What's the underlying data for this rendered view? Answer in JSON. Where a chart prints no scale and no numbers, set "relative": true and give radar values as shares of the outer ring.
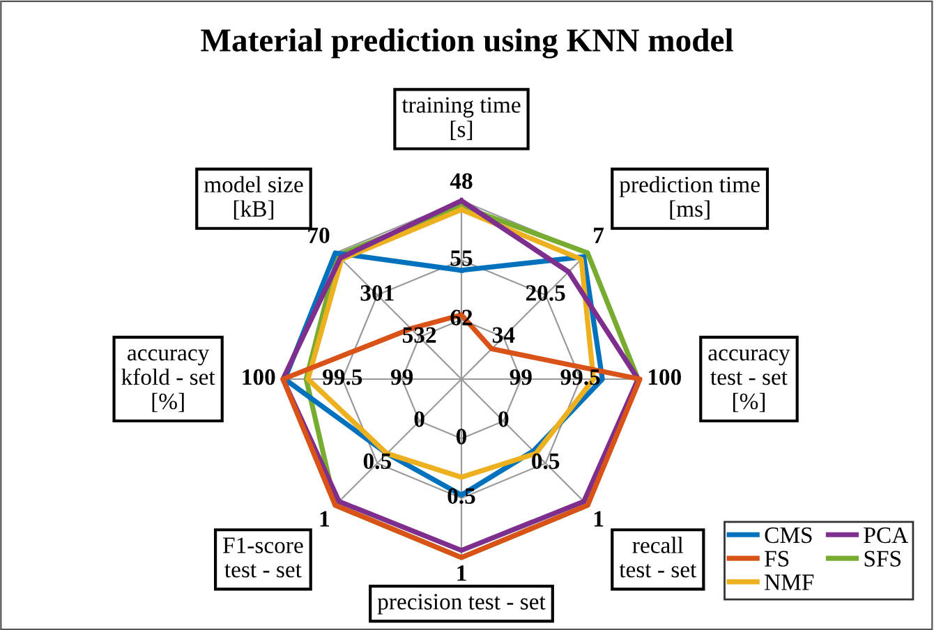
{
  "chart_data": {
    "type": "radar",
    "title": "Material prediction using KNN model",
    "relative": true,
    "grid": true,
    "legend": "bottom right",
    "line_style": "solid",
    "marker": "none",
    "categories": [
      "training time\n[s]",
      "prediction time\n[ms]",
      "accuracy\ntest - set\n[%]",
      "recall\ntest - set",
      "precision test - set",
      "F1-score\ntest - set",
      "accuracy\nkfold - set\n[%]",
      "model size\n[kB]"
    ],
    "series": [
      {
        "name": "CMS",
        "color": "#0072bd",
        "values": [
          0.61,
          0.97,
          0.79,
          0.57,
          0.65,
          0.59,
          0.99,
          1.0
        ]
      },
      {
        "name": "FS",
        "color": "#d95319",
        "values": [
          0.36,
          0.24,
          1.0,
          1.0,
          1.0,
          1.0,
          1.0,
          0.4
        ]
      },
      {
        "name": "NMF",
        "color": "#edb120",
        "values": [
          0.95,
          0.95,
          0.74,
          0.59,
          0.55,
          0.59,
          0.86,
          0.95
        ]
      },
      {
        "name": "PCA",
        "color": "#7e2f8e",
        "values": [
          1.0,
          0.85,
          0.99,
          0.97,
          0.96,
          0.97,
          1.0,
          0.96
        ]
      },
      {
        "name": "SFS",
        "color": "#77ac30",
        "values": [
          0.97,
          1.0,
          0.99,
          1.0,
          1.0,
          1.0,
          0.87,
          0.98
        ]
      }
    ],
    "annotations": [
      "62",
      "55",
      "48",
      "34",
      "20.5",
      "7",
      "99",
      "99.5",
      "100",
      "0",
      "0.5",
      "1",
      "0",
      "0.5",
      "1",
      "0",
      "0.5",
      "1",
      "99",
      "99.5",
      "100",
      "532",
      "301",
      "70"
    ]
  }
}
